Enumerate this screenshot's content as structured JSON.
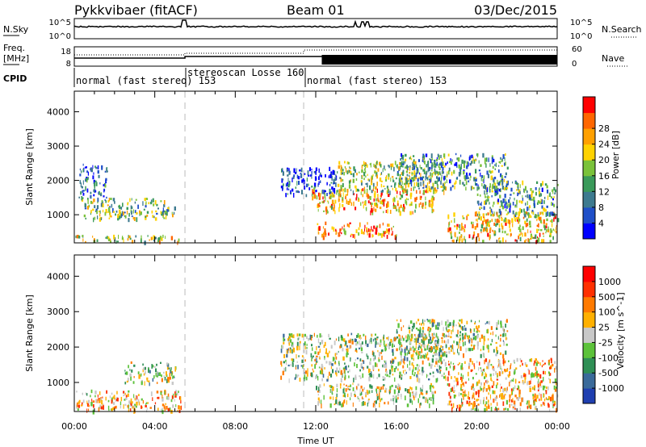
{
  "header": {
    "station": "Pykkvibaer (fitACF)",
    "beam": "Beam 01",
    "date": "03/Dec/2015"
  },
  "strips": {
    "nsky_label": "N.Sky",
    "nsearch_label": "N.Search",
    "noise_ticks": [
      "10^5",
      "10^0"
    ],
    "freq_label_1": "Freq.",
    "freq_label_2": "[MHz]",
    "freq_ticks": [
      "18",
      "8"
    ],
    "nave_label": "Nave",
    "nave_ticks": [
      "60",
      "0"
    ],
    "cpid_label": "CPID",
    "modes": [
      {
        "text": "normal (fast stereo) 153",
        "start_h": 0.0
      },
      {
        "text": "stereoscan Losse 160",
        "start_h": 5.5
      },
      {
        "text": "normal (fast stereo) 153",
        "start_h": 11.4
      }
    ]
  },
  "time_axis": {
    "label": "Time UT",
    "ticks": [
      "00:00",
      "04:00",
      "08:00",
      "12:00",
      "16:00",
      "20:00",
      "00:00"
    ]
  },
  "chart_data": [
    {
      "type": "heatmap",
      "name": "power",
      "ylabel": "Slant Range [km]",
      "xlim": [
        0,
        24
      ],
      "ylim": [
        180,
        4600
      ],
      "yticks": [
        1000,
        2000,
        3000,
        4000
      ],
      "colorbar": {
        "label": "Power [dB]",
        "ticks": [
          "4",
          "8",
          "12",
          "16",
          "20",
          "24",
          "28"
        ],
        "colors": [
          "#0000ff",
          "#1f4fc8",
          "#3d7a8f",
          "#3a9a5a",
          "#7ac23a",
          "#ffd200",
          "#ffa000",
          "#ff6600",
          "#ff0000"
        ]
      },
      "clusters": [
        {
          "t": [
            0.0,
            5.3
          ],
          "r": [
            220,
            420
          ],
          "level": 0.55
        },
        {
          "t": [
            0.3,
            5.0
          ],
          "r": [
            900,
            1500
          ],
          "level": 0.45
        },
        {
          "t": [
            0.2,
            1.6
          ],
          "r": [
            1500,
            2500
          ],
          "level": 0.2
        },
        {
          "t": [
            10.2,
            13.0
          ],
          "r": [
            1600,
            2400
          ],
          "level": 0.15
        },
        {
          "t": [
            11.8,
            18.0
          ],
          "r": [
            1100,
            1800
          ],
          "level": 0.7
        },
        {
          "t": [
            12.0,
            16.0
          ],
          "r": [
            400,
            800
          ],
          "level": 0.75
        },
        {
          "t": [
            13.0,
            18.5
          ],
          "r": [
            1700,
            2600
          ],
          "level": 0.5
        },
        {
          "t": [
            16.0,
            21.5
          ],
          "r": [
            1800,
            2800
          ],
          "level": 0.35
        },
        {
          "t": [
            18.5,
            24.0
          ],
          "r": [
            250,
            1100
          ],
          "level": 0.65
        },
        {
          "t": [
            20.0,
            24.0
          ],
          "r": [
            1000,
            2000
          ],
          "level": 0.35
        }
      ]
    },
    {
      "type": "heatmap",
      "name": "velocity",
      "ylabel": "Slant Range [km]",
      "xlim": [
        0,
        24
      ],
      "ylim": [
        180,
        4600
      ],
      "yticks": [
        1000,
        2000,
        3000,
        4000
      ],
      "colorbar": {
        "label": "Velocity [m s^-1]",
        "ticks": [
          "1000",
          "500",
          "100",
          "25",
          "-25",
          "-100",
          "-500",
          "-1000"
        ],
        "colors": [
          "#1f3fb0",
          "#3a6a9a",
          "#2f8f55",
          "#5cc23a",
          "#c8c8c8",
          "#ffb000",
          "#ff7a00",
          "#ff3000",
          "#ff0000"
        ]
      },
      "clusters": [
        {
          "t": [
            0.0,
            5.3
          ],
          "r": [
            220,
            800
          ],
          "level": 0.6
        },
        {
          "t": [
            2.5,
            5.0
          ],
          "r": [
            1000,
            1600
          ],
          "level": 0.45
        },
        {
          "t": [
            10.2,
            18.5
          ],
          "r": [
            1100,
            2400
          ],
          "level": 0.45
        },
        {
          "t": [
            12.0,
            18.0
          ],
          "r": [
            400,
            1000
          ],
          "level": 0.5
        },
        {
          "t": [
            16.0,
            21.5
          ],
          "r": [
            1800,
            2800
          ],
          "level": 0.45
        },
        {
          "t": [
            18.5,
            24.0
          ],
          "r": [
            250,
            1700
          ],
          "level": 0.6
        }
      ]
    }
  ]
}
